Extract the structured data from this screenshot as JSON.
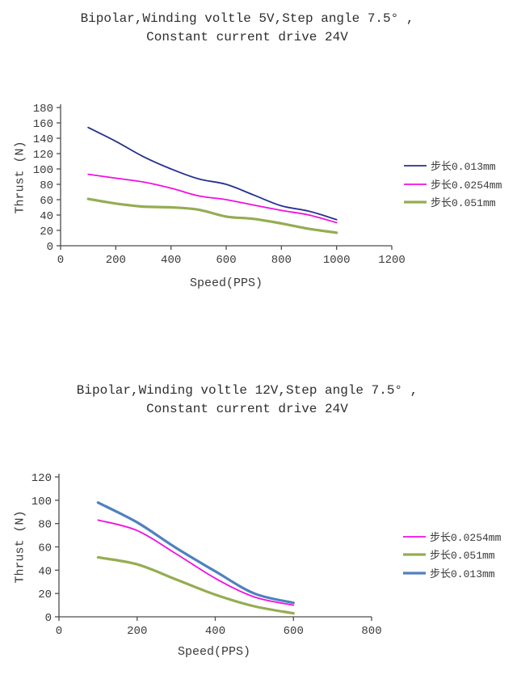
{
  "page": {
    "background": "#ffffff",
    "text_color": "#2e2e2e",
    "axis_color": "#4d4d4d"
  },
  "chart_data": [
    {
      "type": "line",
      "title": "Bipolar,Winding voltle 5V,Step angle 7.5° ,",
      "subtitle": "Constant current drive 24V",
      "xlabel": "Speed(PPS)",
      "ylabel": "Thrust (N)",
      "x": [
        100,
        200,
        300,
        400,
        500,
        600,
        700,
        800,
        900,
        1000
      ],
      "xlim": [
        0,
        1200
      ],
      "xticks": [
        0,
        200,
        400,
        600,
        800,
        1000,
        1200
      ],
      "ylim": [
        0,
        180
      ],
      "yticks": [
        0,
        20,
        40,
        60,
        80,
        100,
        120,
        140,
        160,
        180
      ],
      "grid": false,
      "legend_position": "right",
      "series": [
        {
          "name": "步长0.013mm",
          "color": "#26308f",
          "stroke_width": 1.8,
          "values": [
            154,
            136,
            116,
            100,
            87,
            80,
            66,
            52,
            45,
            34
          ]
        },
        {
          "name": "步长0.0254mm",
          "color": "#f010e0",
          "stroke_width": 1.8,
          "values": [
            93,
            88,
            83,
            75,
            65,
            60,
            53,
            46,
            40,
            30
          ]
        },
        {
          "name": "步长0.051mm",
          "color": "#94ad52",
          "stroke_width": 3.2,
          "values": [
            61,
            55,
            51,
            50,
            47,
            38,
            35,
            29,
            22,
            17
          ]
        }
      ]
    },
    {
      "type": "line",
      "title": "Bipolar,Winding voltle 12V,Step angle 7.5° ,",
      "subtitle": "Constant current drive 24V",
      "xlabel": "Speed(PPS)",
      "ylabel": "Thrust (N)",
      "x": [
        100,
        200,
        300,
        400,
        500,
        600
      ],
      "xlim": [
        0,
        800
      ],
      "xticks": [
        0,
        200,
        400,
        600,
        800
      ],
      "ylim": [
        0,
        120
      ],
      "yticks": [
        0,
        20,
        40,
        60,
        80,
        100,
        120
      ],
      "grid": false,
      "legend_position": "right",
      "series": [
        {
          "name": "步长0.0254mm",
          "color": "#f010e0",
          "stroke_width": 1.8,
          "values": [
            83,
            74,
            54,
            33,
            17,
            10
          ]
        },
        {
          "name": "步长0.051mm",
          "color": "#94ad52",
          "stroke_width": 3.2,
          "values": [
            51,
            45,
            32,
            19,
            9,
            3
          ]
        },
        {
          "name": "步长0.013mm",
          "color": "#4f81bd",
          "stroke_width": 3.2,
          "values": [
            98,
            81,
            59,
            39,
            20,
            12
          ]
        }
      ]
    }
  ]
}
